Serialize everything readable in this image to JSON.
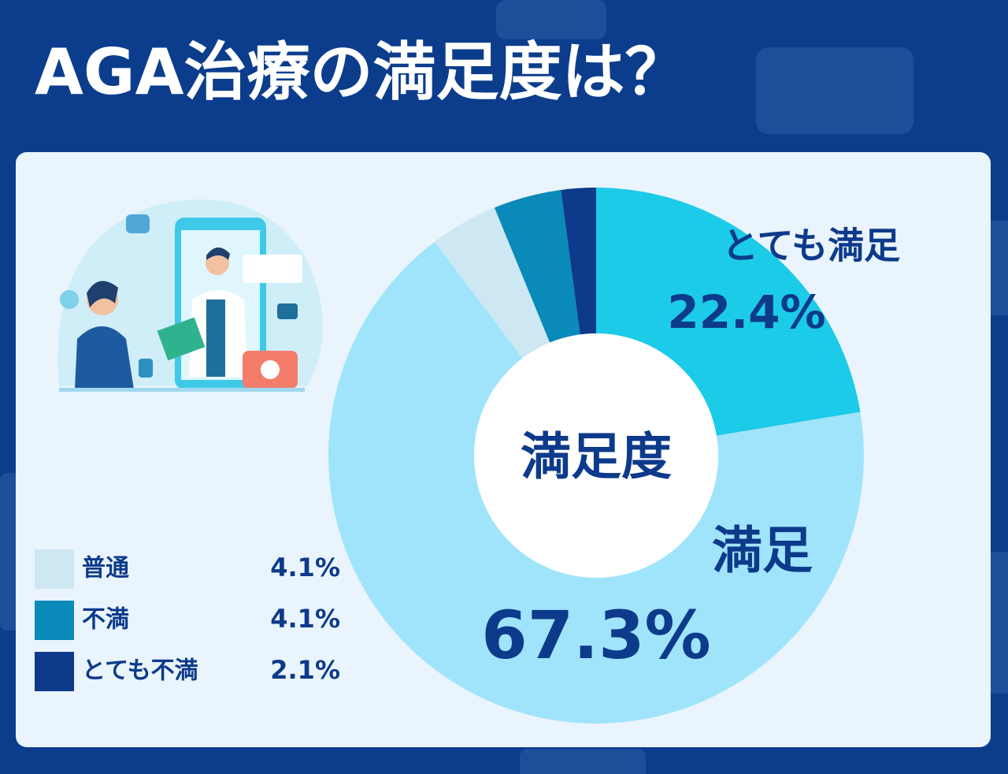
{
  "chart_data": {
    "type": "pie",
    "title": "AGA治療の満足度は？",
    "center_label": "満足度",
    "categories": [
      "とても満足",
      "満足",
      "普通",
      "不満",
      "とても不満"
    ],
    "values": [
      22.4,
      67.3,
      4.1,
      4.1,
      2.1
    ],
    "value_labels": [
      "22.4%",
      "67.3%",
      "4.1%",
      "4.1%",
      "2.1%"
    ],
    "colors": [
      "#1ccbe8",
      "#a0e4fb",
      "#cde8f3",
      "#0a8ab8",
      "#0d3a8a"
    ]
  }
}
